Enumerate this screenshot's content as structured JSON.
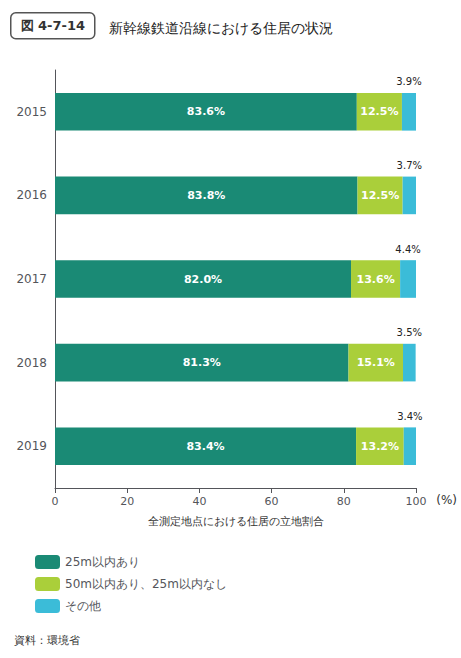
{
  "chart_data": {
    "type": "bar",
    "orientation": "horizontal",
    "stacked": true,
    "title": "新幹線鉄道沿線における住居の状況",
    "annotations": [
      "図 4-7-14",
      "(%)",
      "資料：環境省"
    ],
    "xlabel": "全測定地点における住居の立地割合",
    "categories": [
      "2015",
      "2016",
      "2017",
      "2018",
      "2019"
    ],
    "series": [
      {
        "name": "25m以内あり",
        "color": "#1a8a75",
        "values": [
          83.6,
          83.8,
          82.0,
          81.3,
          83.4
        ],
        "value_labels": [
          "83.6%",
          "83.8%",
          "82.0%",
          "81.3%",
          "83.4%"
        ]
      },
      {
        "name": "50m以内あり、25m以内なし",
        "color": "#aacf3a",
        "values": [
          12.5,
          12.5,
          13.6,
          15.1,
          13.2
        ],
        "value_labels": [
          "12.5%",
          "12.5%",
          "13.6%",
          "15.1%",
          "13.2%"
        ]
      },
      {
        "name": "その他",
        "color": "#3bbcd8",
        "values": [
          3.9,
          3.7,
          4.4,
          3.5,
          3.4
        ],
        "value_labels": [
          "3.9%",
          "3.7%",
          "4.4%",
          "3.5%",
          "3.4%"
        ]
      }
    ],
    "xlim": [
      0,
      100
    ],
    "xticks": [
      0,
      20,
      40,
      60,
      80,
      100
    ],
    "grid": false,
    "legend": "bottom",
    "data_labels": true
  }
}
